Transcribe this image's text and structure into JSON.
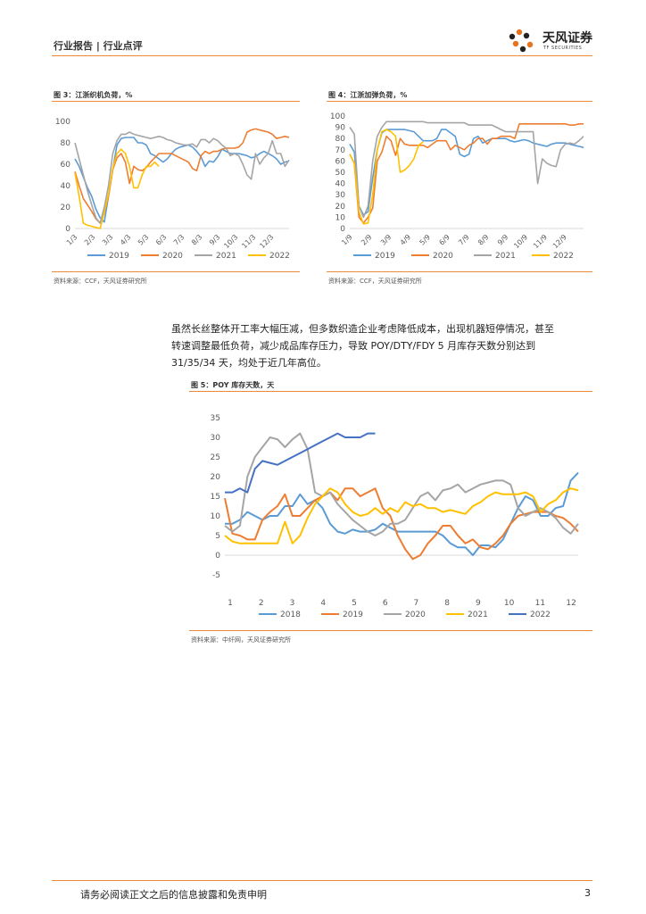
{
  "header": {
    "text": "行业报告 | 行业点评"
  },
  "logo": {
    "name_cn": "天风证券",
    "name_en": "TF SECURITIES"
  },
  "figures": [
    {
      "title": "图 3：江浙织机负荷，%",
      "source": "资料来源：CCF，天风证券研究所"
    },
    {
      "title": "图 4：江浙加弹负荷，%",
      "source": "资料来源：CCF，天风证券研究所"
    },
    {
      "title": "图 5：POY 库存天数，天",
      "source": "资料来源：中纤网，天风证券研究所"
    }
  ],
  "paragraph": {
    "lines": [
      "虽然长丝整体开工率大幅压减，但多数织造企业考虑降低成本，出现机器短停情况，甚至",
      "转速调整最低负荷，减少成品库存压力，导致 POY/DTY/FDY 5 月库存天数分别达到",
      "31/35/34 天，均处于近几年高位。"
    ]
  },
  "footer": {
    "disclaimer": "请务必阅读正文之后的信息披露和免责申明",
    "page": "3"
  },
  "chart_data": [
    {
      "type": "line",
      "title": "图 3：江浙织机负荷，%",
      "ylim": [
        0,
        100
      ],
      "yticks": [
        0,
        20,
        40,
        60,
        80,
        100
      ],
      "xticks": [
        "1/3",
        "2/3",
        "3/3",
        "4/3",
        "5/3",
        "6/3",
        "7/3",
        "8/3",
        "9/3",
        "10/3",
        "11/3",
        "12/3"
      ],
      "n_points": 52,
      "series": [
        {
          "name": "2019",
          "color": "#5b9bd5",
          "values": [
            65,
            58,
            48,
            38,
            30,
            18,
            10,
            6,
            30,
            55,
            78,
            84,
            85,
            85,
            85,
            80,
            80,
            78,
            70,
            68,
            65,
            62,
            65,
            70,
            74,
            76,
            77,
            78,
            76,
            72,
            67,
            58,
            63,
            62,
            67,
            74,
            72,
            70,
            70,
            70,
            69,
            68,
            66,
            67,
            70,
            72,
            70,
            68,
            65,
            60,
            62,
            63
          ]
        },
        {
          "name": "2020",
          "color": "#ed7d31",
          "values": [
            53,
            40,
            28,
            22,
            16,
            9,
            5,
            15,
            30,
            55,
            66,
            70,
            62,
            42,
            58,
            55,
            54,
            57,
            62,
            66,
            70,
            70,
            70,
            70,
            68,
            66,
            64,
            62,
            56,
            54,
            68,
            72,
            70,
            72,
            72,
            74,
            75,
            75,
            75,
            76,
            80,
            90,
            92,
            93,
            92,
            91,
            90,
            88,
            84,
            85,
            86,
            85
          ]
        },
        {
          "name": "2021",
          "color": "#a5a5a5",
          "values": [
            80,
            65,
            50,
            35,
            22,
            10,
            5,
            20,
            40,
            70,
            82,
            88,
            88,
            90,
            88,
            87,
            86,
            85,
            84,
            85,
            86,
            85,
            83,
            82,
            80,
            79,
            78,
            78,
            79,
            76,
            83,
            83,
            80,
            84,
            82,
            78,
            75,
            68,
            70,
            68,
            60,
            50,
            46,
            70,
            60,
            66,
            70,
            82,
            70,
            70,
            58,
            64
          ]
        },
        {
          "name": "2022",
          "color": "#ffc000",
          "values": [
            52,
            30,
            5,
            3,
            2,
            1,
            0,
            15,
            32,
            56,
            70,
            74,
            70,
            58,
            38,
            38,
            50,
            58,
            58,
            62,
            58,
            null,
            null,
            null,
            null,
            null,
            null,
            null,
            null,
            null,
            null,
            null,
            null,
            null,
            null,
            null,
            null,
            null,
            null,
            null,
            null,
            null,
            null,
            null,
            null,
            null,
            null,
            null,
            null,
            null,
            null,
            null
          ]
        }
      ]
    },
    {
      "type": "line",
      "title": "图 4：江浙加弹负荷，%",
      "ylim": [
        0,
        100
      ],
      "yticks": [
        0,
        10,
        20,
        30,
        40,
        50,
        60,
        70,
        80,
        90,
        100
      ],
      "xticks": [
        "1/9",
        "2/9",
        "3/9",
        "4/9",
        "5/9",
        "6/9",
        "7/9",
        "8/9",
        "9/9",
        "10/9",
        "11/9",
        "12/9"
      ],
      "n_points": 52,
      "series": [
        {
          "name": "2019",
          "color": "#5b9bd5",
          "values": [
            75,
            68,
            20,
            12,
            15,
            45,
            70,
            85,
            88,
            88,
            88,
            88,
            88,
            87,
            86,
            82,
            78,
            78,
            78,
            80,
            88,
            88,
            85,
            82,
            66,
            64,
            66,
            80,
            82,
            76,
            78,
            80,
            80,
            80,
            80,
            78,
            77,
            78,
            79,
            78,
            76,
            75,
            74,
            73,
            75,
            76,
            76,
            76,
            75,
            74,
            73,
            72
          ]
        },
        {
          "name": "2020",
          "color": "#ed7d31",
          "values": [
            66,
            58,
            10,
            5,
            10,
            18,
            60,
            68,
            82,
            78,
            65,
            80,
            75,
            74,
            74,
            74,
            74,
            72,
            75,
            78,
            78,
            78,
            70,
            74,
            72,
            70,
            74,
            76,
            80,
            80,
            75,
            80,
            80,
            82,
            82,
            82,
            80,
            93,
            93,
            93,
            93,
            93,
            93,
            93,
            93,
            93,
            93,
            93,
            92,
            92,
            93,
            93
          ]
        },
        {
          "name": "2021",
          "color": "#a5a5a5",
          "values": [
            90,
            84,
            20,
            10,
            20,
            60,
            82,
            90,
            95,
            95,
            95,
            95,
            95,
            95,
            95,
            95,
            95,
            94,
            94,
            94,
            94,
            94,
            94,
            94,
            94,
            94,
            92,
            92,
            92,
            92,
            92,
            92,
            90,
            88,
            86,
            86,
            86,
            86,
            86,
            86,
            86,
            40,
            62,
            58,
            56,
            55,
            70,
            75,
            76,
            75,
            78,
            82
          ]
        },
        {
          "name": "2022",
          "color": "#ffc000",
          "values": [
            66,
            58,
            15,
            4,
            5,
            30,
            70,
            86,
            88,
            86,
            82,
            50,
            52,
            56,
            62,
            74,
            77,
            null,
            null,
            null,
            null,
            null,
            null,
            null,
            null,
            null,
            null,
            null,
            null,
            null,
            null,
            null,
            null,
            null,
            null,
            null,
            null,
            null,
            null,
            null,
            null,
            null,
            null,
            null,
            null,
            null,
            null,
            null,
            null,
            null,
            null,
            null
          ]
        }
      ]
    },
    {
      "type": "line",
      "title": "图 5：POY 库存天数，天",
      "ylim": [
        -5,
        35
      ],
      "yticks": [
        -5,
        0,
        5,
        10,
        15,
        20,
        25,
        30,
        35
      ],
      "xticks": [
        "1",
        "2",
        "3",
        "4",
        "5",
        "6",
        "7",
        "8",
        "9",
        "10",
        "11",
        "12"
      ],
      "n_points": 48,
      "series": [
        {
          "name": "2018",
          "color": "#5b9bd5",
          "values": [
            8,
            8,
            9,
            11,
            10,
            9,
            10,
            10,
            12.5,
            12.5,
            15.5,
            13,
            14,
            12,
            8,
            6,
            5.5,
            6.5,
            6,
            6,
            6.5,
            8,
            7,
            6,
            6,
            6,
            6,
            6,
            6,
            5,
            3,
            2,
            2,
            0,
            2.5,
            2.5,
            2,
            4,
            8,
            12,
            15,
            14,
            10,
            10,
            12,
            12.5,
            19,
            21
          ]
        },
        {
          "name": "2019",
          "color": "#ed7d31",
          "values": [
            14.5,
            5.5,
            5,
            4,
            4,
            9,
            11,
            12.5,
            15.5,
            10,
            10,
            12,
            14,
            15,
            16,
            14,
            17,
            17,
            15,
            16,
            17,
            12,
            10,
            5,
            1.5,
            -1,
            0,
            3,
            5,
            7.5,
            7.5,
            5,
            3,
            4,
            2,
            1.5,
            3,
            5,
            8,
            10,
            10.5,
            11,
            11,
            11,
            10,
            9.5,
            8,
            6
          ]
        },
        {
          "name": "2020",
          "color": "#a5a5a5",
          "values": [
            7.5,
            6,
            7.5,
            20,
            25,
            27.5,
            30,
            29.5,
            27.5,
            29.5,
            31,
            27,
            16,
            15,
            16,
            13,
            11,
            9,
            7.5,
            6,
            5,
            6,
            8,
            8,
            9,
            12,
            15,
            16,
            14,
            16.5,
            17,
            18,
            16,
            17,
            18,
            18.5,
            19,
            19,
            18,
            12,
            10,
            11,
            12,
            11,
            9.5,
            7,
            5.5,
            8
          ]
        },
        {
          "name": "2021",
          "color": "#ffc000",
          "values": [
            5,
            3.5,
            3,
            3,
            3,
            3,
            3,
            3,
            8.5,
            3,
            5,
            9.5,
            13,
            15,
            17,
            16,
            13,
            11,
            10,
            10.5,
            12,
            10.5,
            12,
            11,
            13.5,
            12.5,
            13,
            12,
            12,
            11,
            11.5,
            11,
            10.5,
            12.5,
            13.5,
            15,
            16,
            15.5,
            15.5,
            15.5,
            16,
            15,
            11,
            13,
            14,
            16,
            17,
            16.5
          ]
        },
        {
          "name": "2022",
          "color": "#4472c4",
          "values": [
            16,
            16,
            17,
            16,
            22,
            24,
            23.5,
            23,
            24,
            25,
            26,
            27,
            28,
            29,
            30,
            31,
            30,
            30,
            30,
            31,
            31
          ]
        }
      ]
    }
  ]
}
